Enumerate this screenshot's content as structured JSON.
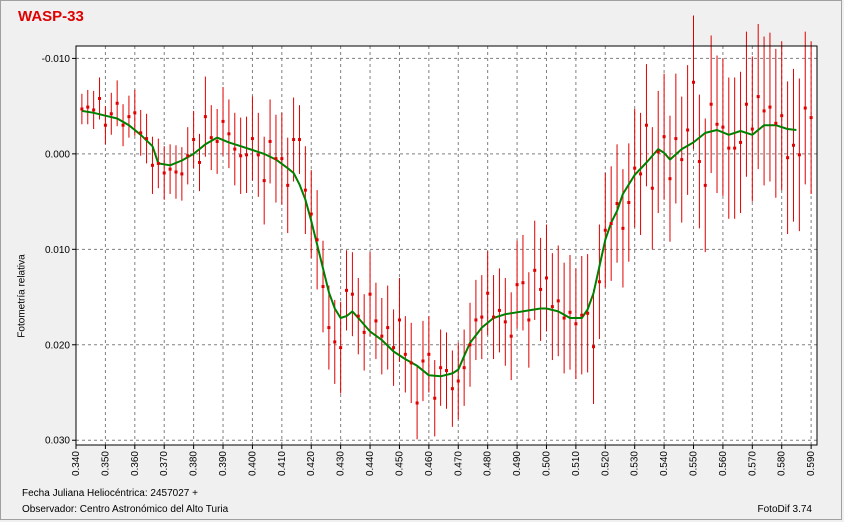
{
  "header": {
    "title": "WASP-33"
  },
  "footer": {
    "jd_line": "Fecha Juliana Heliocéntrica: 2457027 +",
    "observer_line": "Observador: Centro Astronómico del Alto Turia",
    "software": "FotoDif 3.74"
  },
  "colors": {
    "title": "#e00000",
    "points": "#e00000",
    "fit": "#008000",
    "grid": "#808080"
  },
  "chart_data": {
    "type": "scatter",
    "title": "WASP-33",
    "xlabel": "",
    "ylabel": "Fotometría relativa",
    "xlim": [
      0.34,
      0.592
    ],
    "ylim": [
      0.0305,
      -0.0113
    ],
    "y_inverted": true,
    "grid": true,
    "x_ticks": [
      "0.340",
      "0.350",
      "0.360",
      "0.370",
      "0.380",
      "0.390",
      "0.400",
      "0.410",
      "0.420",
      "0.430",
      "0.440",
      "0.450",
      "0.460",
      "0.470",
      "0.480",
      "0.490",
      "0.500",
      "0.510",
      "0.520",
      "0.530",
      "0.540",
      "0.550",
      "0.560",
      "0.570",
      "0.580",
      "0.590"
    ],
    "y_ticks": [
      "-0.010",
      "0.000",
      "0.010",
      "0.020",
      "0.030"
    ],
    "series": [
      {
        "style": "points-with-error-bars",
        "color": "#e00000",
        "x": [
          0.342,
          0.344,
          0.346,
          0.348,
          0.35,
          0.352,
          0.354,
          0.356,
          0.358,
          0.36,
          0.362,
          0.364,
          0.366,
          0.368,
          0.37,
          0.372,
          0.374,
          0.376,
          0.378,
          0.38,
          0.382,
          0.384,
          0.386,
          0.388,
          0.39,
          0.392,
          0.394,
          0.396,
          0.398,
          0.4,
          0.402,
          0.404,
          0.406,
          0.408,
          0.41,
          0.412,
          0.414,
          0.416,
          0.418,
          0.42,
          0.422,
          0.424,
          0.426,
          0.428,
          0.43,
          0.432,
          0.434,
          0.436,
          0.438,
          0.44,
          0.442,
          0.444,
          0.446,
          0.448,
          0.45,
          0.452,
          0.454,
          0.456,
          0.458,
          0.46,
          0.462,
          0.464,
          0.466,
          0.468,
          0.47,
          0.472,
          0.474,
          0.476,
          0.478,
          0.48,
          0.482,
          0.484,
          0.486,
          0.488,
          0.49,
          0.492,
          0.494,
          0.496,
          0.498,
          0.5,
          0.502,
          0.504,
          0.506,
          0.508,
          0.51,
          0.512,
          0.514,
          0.516,
          0.518,
          0.52,
          0.522,
          0.524,
          0.526,
          0.528,
          0.53,
          0.532,
          0.534,
          0.536,
          0.538,
          0.54,
          0.542,
          0.544,
          0.546,
          0.548,
          0.55,
          0.552,
          0.554,
          0.556,
          0.558,
          0.56,
          0.562,
          0.564,
          0.566,
          0.568,
          0.57,
          0.572,
          0.574,
          0.576,
          0.578,
          0.58,
          0.582,
          0.584,
          0.586,
          0.588,
          0.59
        ],
        "y": [
          -0.0047,
          -0.0049,
          -0.0046,
          -0.0058,
          -0.003,
          -0.0042,
          -0.0053,
          -0.003,
          -0.0039,
          -0.0043,
          -0.0022,
          -0.0016,
          0.0012,
          0.001,
          0.002,
          0.0016,
          0.0019,
          0.0021,
          0.0002,
          -0.0015,
          0.0009,
          -0.0039,
          -0.0017,
          -0.0013,
          -0.0034,
          -0.0021,
          -0.0005,
          0.0002,
          0.0001,
          -0.0016,
          0.0001,
          0.0028,
          -0.0013,
          0.0005,
          0.0005,
          0.0033,
          -0.0015,
          -0.0015,
          0.0038,
          0.0063,
          0.009,
          0.0139,
          0.0182,
          0.0197,
          0.0203,
          0.0143,
          0.0147,
          0.017,
          0.0187,
          0.0147,
          0.0175,
          0.0191,
          0.0182,
          0.0203,
          0.0174,
          0.021,
          0.0219,
          0.0261,
          0.0217,
          0.021,
          0.0256,
          0.0224,
          0.0227,
          0.0246,
          0.0238,
          0.0224,
          0.02,
          0.0174,
          0.0171,
          0.0146,
          0.0171,
          0.0164,
          0.0176,
          0.0191,
          0.0137,
          0.0135,
          0.0174,
          0.0122,
          0.0142,
          0.013,
          0.016,
          0.0154,
          0.0172,
          0.0166,
          0.0178,
          0.0169,
          0.0167,
          0.0202,
          0.0134,
          0.008,
          0.0073,
          0.0052,
          0.0078,
          0.0051,
          0.0015,
          0.0021,
          -0.003,
          0.0036,
          -0.0002,
          -0.0018,
          0.0026,
          -0.0016,
          0.0006,
          -0.0025,
          -0.0075,
          0.0008,
          0.0033,
          -0.0052,
          -0.0031,
          -0.0028,
          -0.0006,
          -0.0006,
          -0.0012,
          -0.0052,
          -0.0026,
          -0.006,
          -0.0045,
          -0.0049,
          -0.0032,
          -0.004,
          0.0004,
          -0.0009,
          0.0001,
          -0.0048,
          -0.0038
        ],
        "err": [
          0.0016,
          0.0018,
          0.002,
          0.0022,
          0.002,
          0.0022,
          0.0024,
          0.0022,
          0.0022,
          0.0024,
          0.0024,
          0.0026,
          0.003,
          0.0026,
          0.0028,
          0.0026,
          0.0028,
          0.0028,
          0.003,
          0.003,
          0.003,
          0.0042,
          0.0034,
          0.0034,
          0.0036,
          0.0036,
          0.0038,
          0.004,
          0.004,
          0.0044,
          0.0044,
          0.0046,
          0.0044,
          0.0046,
          0.0048,
          0.005,
          0.0044,
          0.0036,
          0.0046,
          0.0046,
          0.0052,
          0.0048,
          0.0044,
          0.0044,
          0.0048,
          0.0042,
          0.0044,
          0.004,
          0.004,
          0.0044,
          0.004,
          0.004,
          0.0044,
          0.004,
          0.0044,
          0.004,
          0.0042,
          0.0038,
          0.0042,
          0.004,
          0.004,
          0.004,
          0.004,
          0.004,
          0.004,
          0.004,
          0.0044,
          0.0042,
          0.0044,
          0.0044,
          0.0044,
          0.0044,
          0.0046,
          0.0046,
          0.0046,
          0.005,
          0.005,
          0.0052,
          0.0054,
          0.0056,
          0.0056,
          0.0058,
          0.0058,
          0.006,
          0.0058,
          0.0062,
          0.0062,
          0.006,
          0.006,
          0.006,
          0.006,
          0.0062,
          0.0062,
          0.0062,
          0.0062,
          0.0064,
          0.0064,
          0.0064,
          0.0064,
          0.0066,
          0.0066,
          0.0068,
          0.0066,
          0.0068,
          0.007,
          0.007,
          0.007,
          0.0072,
          0.0072,
          0.0072,
          0.0074,
          0.0074,
          0.0074,
          0.0076,
          0.0076,
          0.0076,
          0.0078,
          0.0078,
          0.0078,
          0.0078,
          0.008,
          0.008,
          0.008,
          0.008,
          0.008
        ]
      },
      {
        "style": "line",
        "color": "#008000",
        "x": [
          0.342,
          0.346,
          0.35,
          0.354,
          0.358,
          0.362,
          0.366,
          0.368,
          0.372,
          0.376,
          0.38,
          0.384,
          0.388,
          0.392,
          0.396,
          0.4,
          0.404,
          0.408,
          0.412,
          0.414,
          0.416,
          0.418,
          0.42,
          0.422,
          0.424,
          0.426,
          0.428,
          0.43,
          0.432,
          0.434,
          0.436,
          0.44,
          0.444,
          0.448,
          0.452,
          0.456,
          0.46,
          0.464,
          0.468,
          0.47,
          0.472,
          0.474,
          0.478,
          0.482,
          0.486,
          0.49,
          0.494,
          0.498,
          0.5,
          0.504,
          0.508,
          0.512,
          0.514,
          0.516,
          0.518,
          0.52,
          0.522,
          0.524,
          0.526,
          0.53,
          0.534,
          0.538,
          0.54,
          0.542,
          0.546,
          0.55,
          0.554,
          0.558,
          0.562,
          0.566,
          0.57,
          0.574,
          0.578,
          0.582,
          0.585
        ],
        "y": [
          -0.0045,
          -0.0043,
          -0.004,
          -0.0037,
          -0.003,
          -0.002,
          -0.0008,
          0.001,
          0.0012,
          0.0007,
          0.0,
          -0.001,
          -0.0017,
          -0.0012,
          -0.0008,
          -0.0004,
          0.0,
          0.0006,
          0.0015,
          0.002,
          0.0032,
          0.0048,
          0.007,
          0.0095,
          0.012,
          0.0145,
          0.0162,
          0.0172,
          0.017,
          0.0165,
          0.0172,
          0.0186,
          0.0195,
          0.0207,
          0.0215,
          0.0222,
          0.0232,
          0.0233,
          0.023,
          0.0226,
          0.0212,
          0.0198,
          0.0182,
          0.0172,
          0.0168,
          0.0166,
          0.0164,
          0.0162,
          0.0162,
          0.0165,
          0.0172,
          0.0172,
          0.0163,
          0.0146,
          0.0118,
          0.009,
          0.0072,
          0.006,
          0.0042,
          0.0022,
          0.0009,
          -0.0005,
          -0.0001,
          0.0006,
          -0.0005,
          -0.0012,
          -0.0022,
          -0.0025,
          -0.002,
          -0.0024,
          -0.002,
          -0.003,
          -0.003,
          -0.0026,
          -0.0025
        ]
      }
    ]
  }
}
